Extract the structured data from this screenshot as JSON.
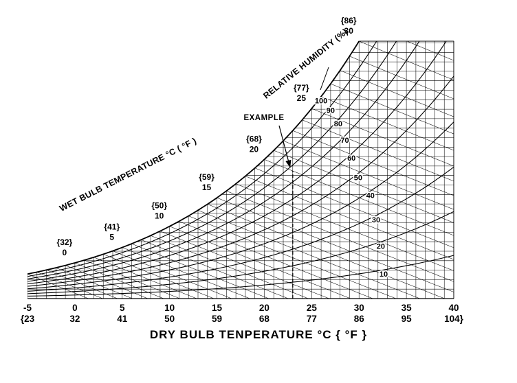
{
  "figure": {
    "background": "#ffffff"
  },
  "chart_data": {
    "type": "line",
    "variant": "psychrometric chart",
    "title": "",
    "x_axis": {
      "title": "DRY BULB TENPERATURE °C { °F }",
      "range_c": [
        -5,
        40
      ],
      "ticks": [
        {
          "c": "-5",
          "f": "{23"
        },
        {
          "c": "0",
          "f": "32"
        },
        {
          "c": "5",
          "f": "41"
        },
        {
          "c": "10",
          "f": "50"
        },
        {
          "c": "15",
          "f": "59"
        },
        {
          "c": "20",
          "f": "68"
        },
        {
          "c": "25",
          "f": "77"
        },
        {
          "c": "30",
          "f": "86"
        },
        {
          "c": "35",
          "f": "95"
        },
        {
          "c": "40",
          "f": "104}"
        }
      ]
    },
    "y_axis": {
      "title": "",
      "range_humidity_ratio_kg_per_kg": [
        0,
        0.0272
      ]
    },
    "wet_bulb_axis": {
      "title": "WET BULB TEMPERATURE °C ( °F )",
      "ticks": [
        {
          "c": "0",
          "f": "{32}"
        },
        {
          "c": "5",
          "f": "{41}"
        },
        {
          "c": "10",
          "f": "{50}"
        },
        {
          "c": "15",
          "f": "{59}"
        },
        {
          "c": "20",
          "f": "{68}"
        },
        {
          "c": "25",
          "f": "{77}"
        },
        {
          "c": "30",
          "f": "{86}"
        }
      ]
    },
    "relative_humidity": {
      "title": "RELATIVE HUMIDITY (%)",
      "curves_percent": [
        100,
        90,
        80,
        70,
        60,
        50,
        40,
        30,
        20,
        10
      ]
    },
    "grid": {
      "dry_bulb_step_c": 1,
      "wet_bulb_step_c": 1,
      "humidity_ratio_step": 0.001,
      "style": "crosshatch mesh"
    },
    "example": {
      "label": "EXAMPLE",
      "dry_bulb_c": 23,
      "wet_bulb_c": 20
    },
    "colors": {
      "ink": "#000000",
      "background": "#ffffff"
    }
  }
}
